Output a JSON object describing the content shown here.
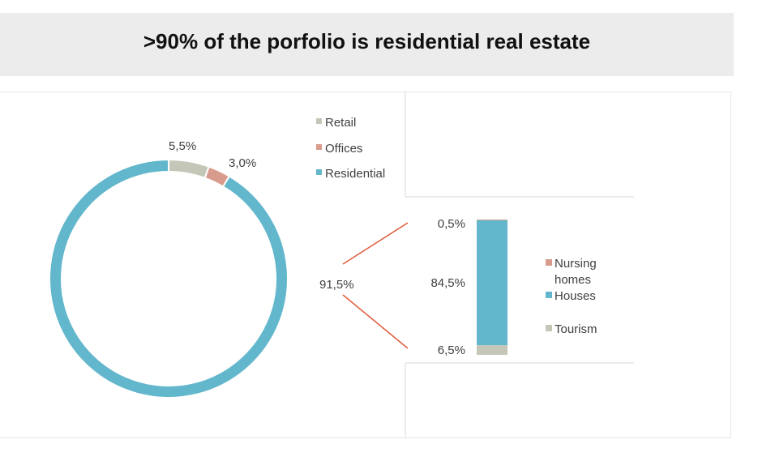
{
  "page": {
    "title": ">90% of the porfolio is residential real estate"
  },
  "colors": {
    "retail": "#c4c7b8",
    "offices": "#d99b8d",
    "residential": "#63b7cc",
    "nursing_homes": "#d99b8d",
    "houses": "#63b7cc",
    "tourism": "#c4c7b8",
    "connector": "#e05a3a"
  },
  "chart_data": [
    {
      "type": "pie",
      "variant": "doughnut",
      "categories": [
        "Retail",
        "Offices",
        "Residential"
      ],
      "values": [
        5.5,
        3.0,
        91.5
      ],
      "data_labels": [
        "5,5%",
        "3,0%",
        "91,5%"
      ],
      "legend": [
        "Retail",
        "Offices",
        "Residential"
      ],
      "legend_position": "top-right"
    },
    {
      "type": "bar",
      "variant": "stacked-column",
      "categories": [
        "Residential"
      ],
      "series": [
        {
          "name": "Tourism",
          "values": [
            6.5
          ],
          "label": "6,5%"
        },
        {
          "name": "Houses",
          "values": [
            84.5
          ],
          "label": "84,5%"
        },
        {
          "name": "Nursing homes",
          "values": [
            0.5
          ],
          "label": "0,5%"
        }
      ],
      "legend": [
        "Nursing homes",
        "Houses",
        "Tourism"
      ],
      "legend_position": "right"
    }
  ]
}
